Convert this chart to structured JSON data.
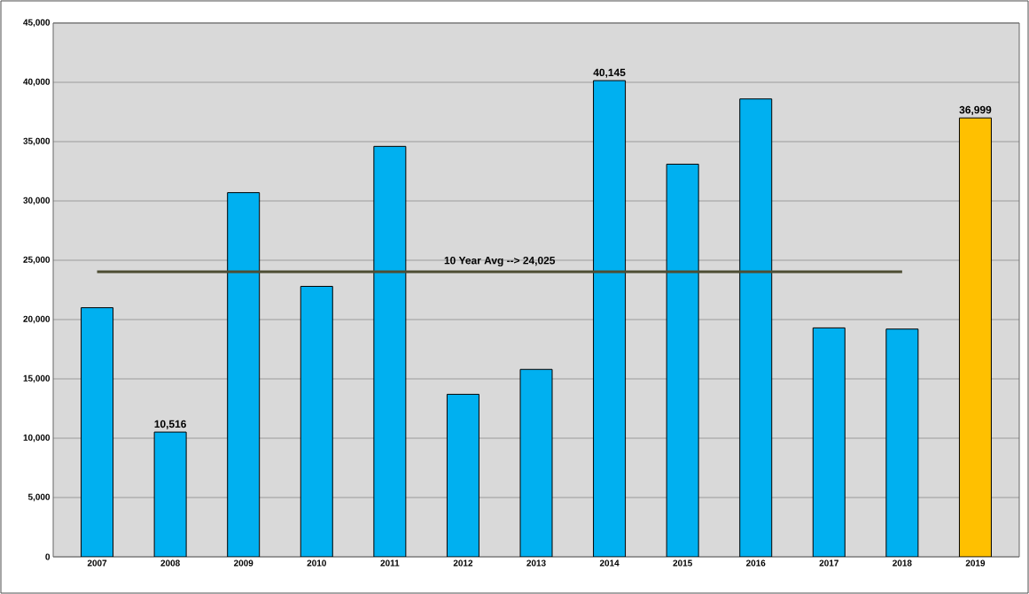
{
  "chart_data": {
    "type": "bar",
    "categories": [
      "2007",
      "2008",
      "2009",
      "2010",
      "2011",
      "2012",
      "2013",
      "2014",
      "2015",
      "2016",
      "2017",
      "2018",
      "2019"
    ],
    "series": [
      {
        "colors": [
          "#00b0f0",
          "#00b0f0",
          "#00b0f0",
          "#00b0f0",
          "#00b0f0",
          "#00b0f0",
          "#00b0f0",
          "#00b0f0",
          "#00b0f0",
          "#00b0f0",
          "#00b0f0",
          "#00b0f0",
          "#ffc000"
        ],
        "values": [
          21000,
          10516,
          30700,
          22800,
          34600,
          13700,
          15800,
          40145,
          33100,
          38600,
          19300,
          19200,
          36999
        ],
        "value_labels": [
          null,
          "10,516",
          null,
          null,
          null,
          null,
          null,
          "40,145",
          null,
          null,
          null,
          null,
          "36,999"
        ]
      },
      {
        "type": "line",
        "name": "10 Year Avg --> 24,025",
        "color": "#4d4d33",
        "values": [
          24025,
          24025,
          24025,
          24025,
          24025,
          24025,
          24025,
          24025,
          24025,
          24025,
          24025,
          24025,
          null
        ]
      }
    ],
    "ylim": [
      0,
      45000
    ],
    "yticks": [
      0,
      {
        "value": 5000,
        "label": "5,000"
      },
      {
        "value": 10000,
        "label": "10,000"
      },
      {
        "value": 15000,
        "label": "15,000"
      },
      {
        "value": 20000,
        "label": "20,000"
      },
      {
        "value": 25000,
        "label": "25,000"
      },
      {
        "value": 30000,
        "label": "30,000"
      },
      {
        "value": 35000,
        "label": "35,000"
      },
      {
        "value": 40000,
        "label": "40,000"
      },
      {
        "value": 45000,
        "label": "45,000"
      }
    ],
    "grid": "y"
  }
}
